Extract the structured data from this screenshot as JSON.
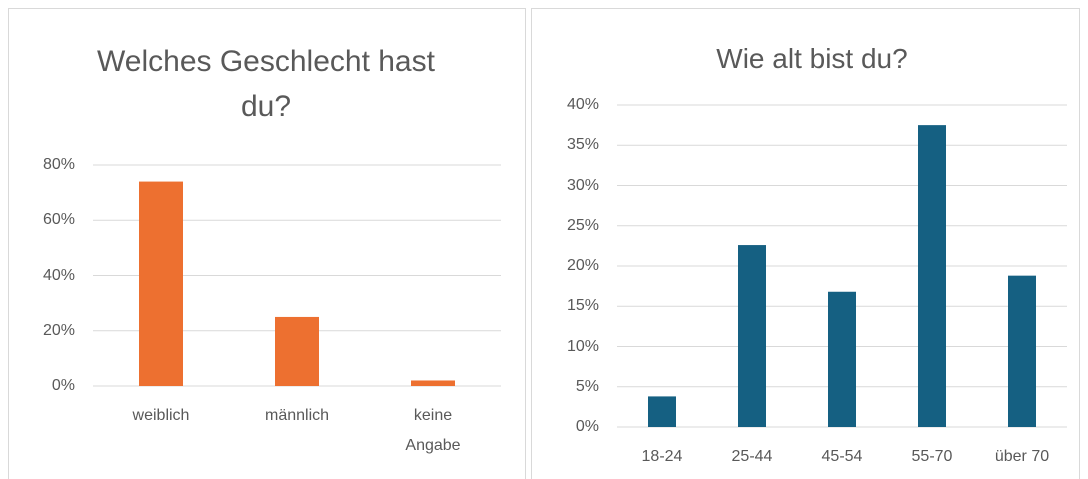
{
  "chart_data": [
    {
      "type": "bar",
      "title": "Welches Geschlecht hast du?",
      "categories": [
        "weiblich",
        "männlich",
        "keine Angabe"
      ],
      "values": [
        74,
        25,
        2
      ],
      "color": "#ed7030",
      "ylim": [
        0,
        80
      ],
      "yticks": [
        {
          "value": 0,
          "label": "0%"
        },
        {
          "value": 20,
          "label": "20%"
        },
        {
          "value": 40,
          "label": "40%"
        },
        {
          "value": 60,
          "label": "60%"
        },
        {
          "value": 80,
          "label": "80%"
        }
      ],
      "grid": true
    },
    {
      "type": "bar",
      "title": "Wie alt bist du?",
      "categories": [
        "18-24",
        "25-44",
        "45-54",
        "55-70",
        "über 70"
      ],
      "values": [
        3.8,
        22.6,
        16.8,
        37.5,
        18.8
      ],
      "color": "#156082",
      "ylim": [
        0,
        40
      ],
      "yticks": [
        {
          "value": 0,
          "label": "0%"
        },
        {
          "value": 5,
          "label": "5%"
        },
        {
          "value": 10,
          "label": "10%"
        },
        {
          "value": 15,
          "label": "15%"
        },
        {
          "value": 20,
          "label": "20%"
        },
        {
          "value": 25,
          "label": "25%"
        },
        {
          "value": 30,
          "label": "30%"
        },
        {
          "value": 35,
          "label": "35%"
        },
        {
          "value": 40,
          "label": "40%"
        }
      ],
      "grid": true
    }
  ]
}
